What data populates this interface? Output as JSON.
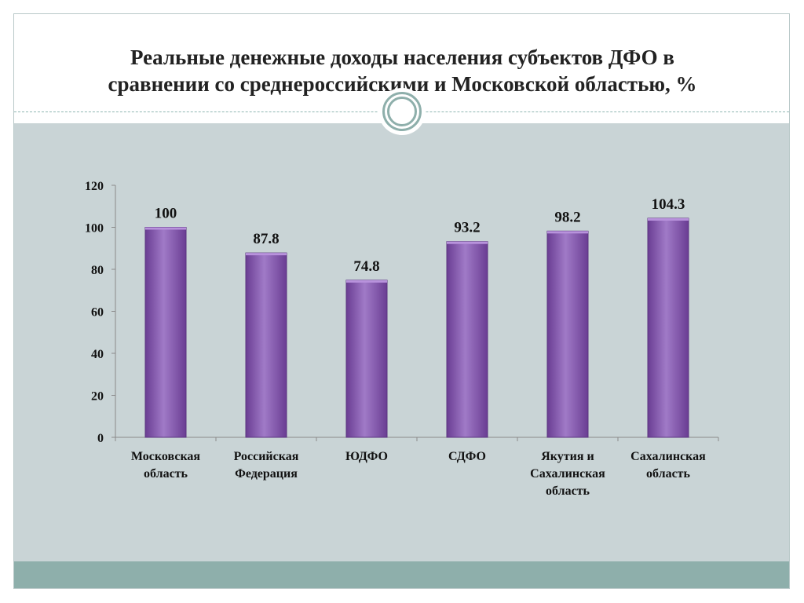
{
  "slide": {
    "title_lines": [
      "Реальные денежные доходы населения субъектов ДФО в",
      "сравнении со среднероссийскими и Московской областью, %"
    ]
  },
  "chart_data": {
    "type": "bar",
    "title": "",
    "categories": [
      [
        "Московская",
        "область"
      ],
      [
        "Российская",
        "Федерация"
      ],
      [
        "ЮДФО"
      ],
      [
        "СДФО"
      ],
      [
        "Якутия и",
        "Сахалинская",
        "область"
      ],
      [
        "Сахалинская",
        "область"
      ]
    ],
    "values": [
      100,
      87.8,
      74.8,
      93.2,
      98.2,
      104.3
    ],
    "value_labels": [
      "100",
      "87.8",
      "74.8",
      "93.2",
      "98.2",
      "104.3"
    ],
    "yticks": [
      0,
      20,
      40,
      60,
      80,
      100,
      120
    ],
    "ylim": [
      0,
      120
    ],
    "xlabel": "",
    "ylabel": "",
    "grid": false,
    "legend": "none",
    "bar_color": "#8e5bb5",
    "bar_color_dark": "#6a3d93",
    "bar_color_light": "#a07ac7"
  }
}
